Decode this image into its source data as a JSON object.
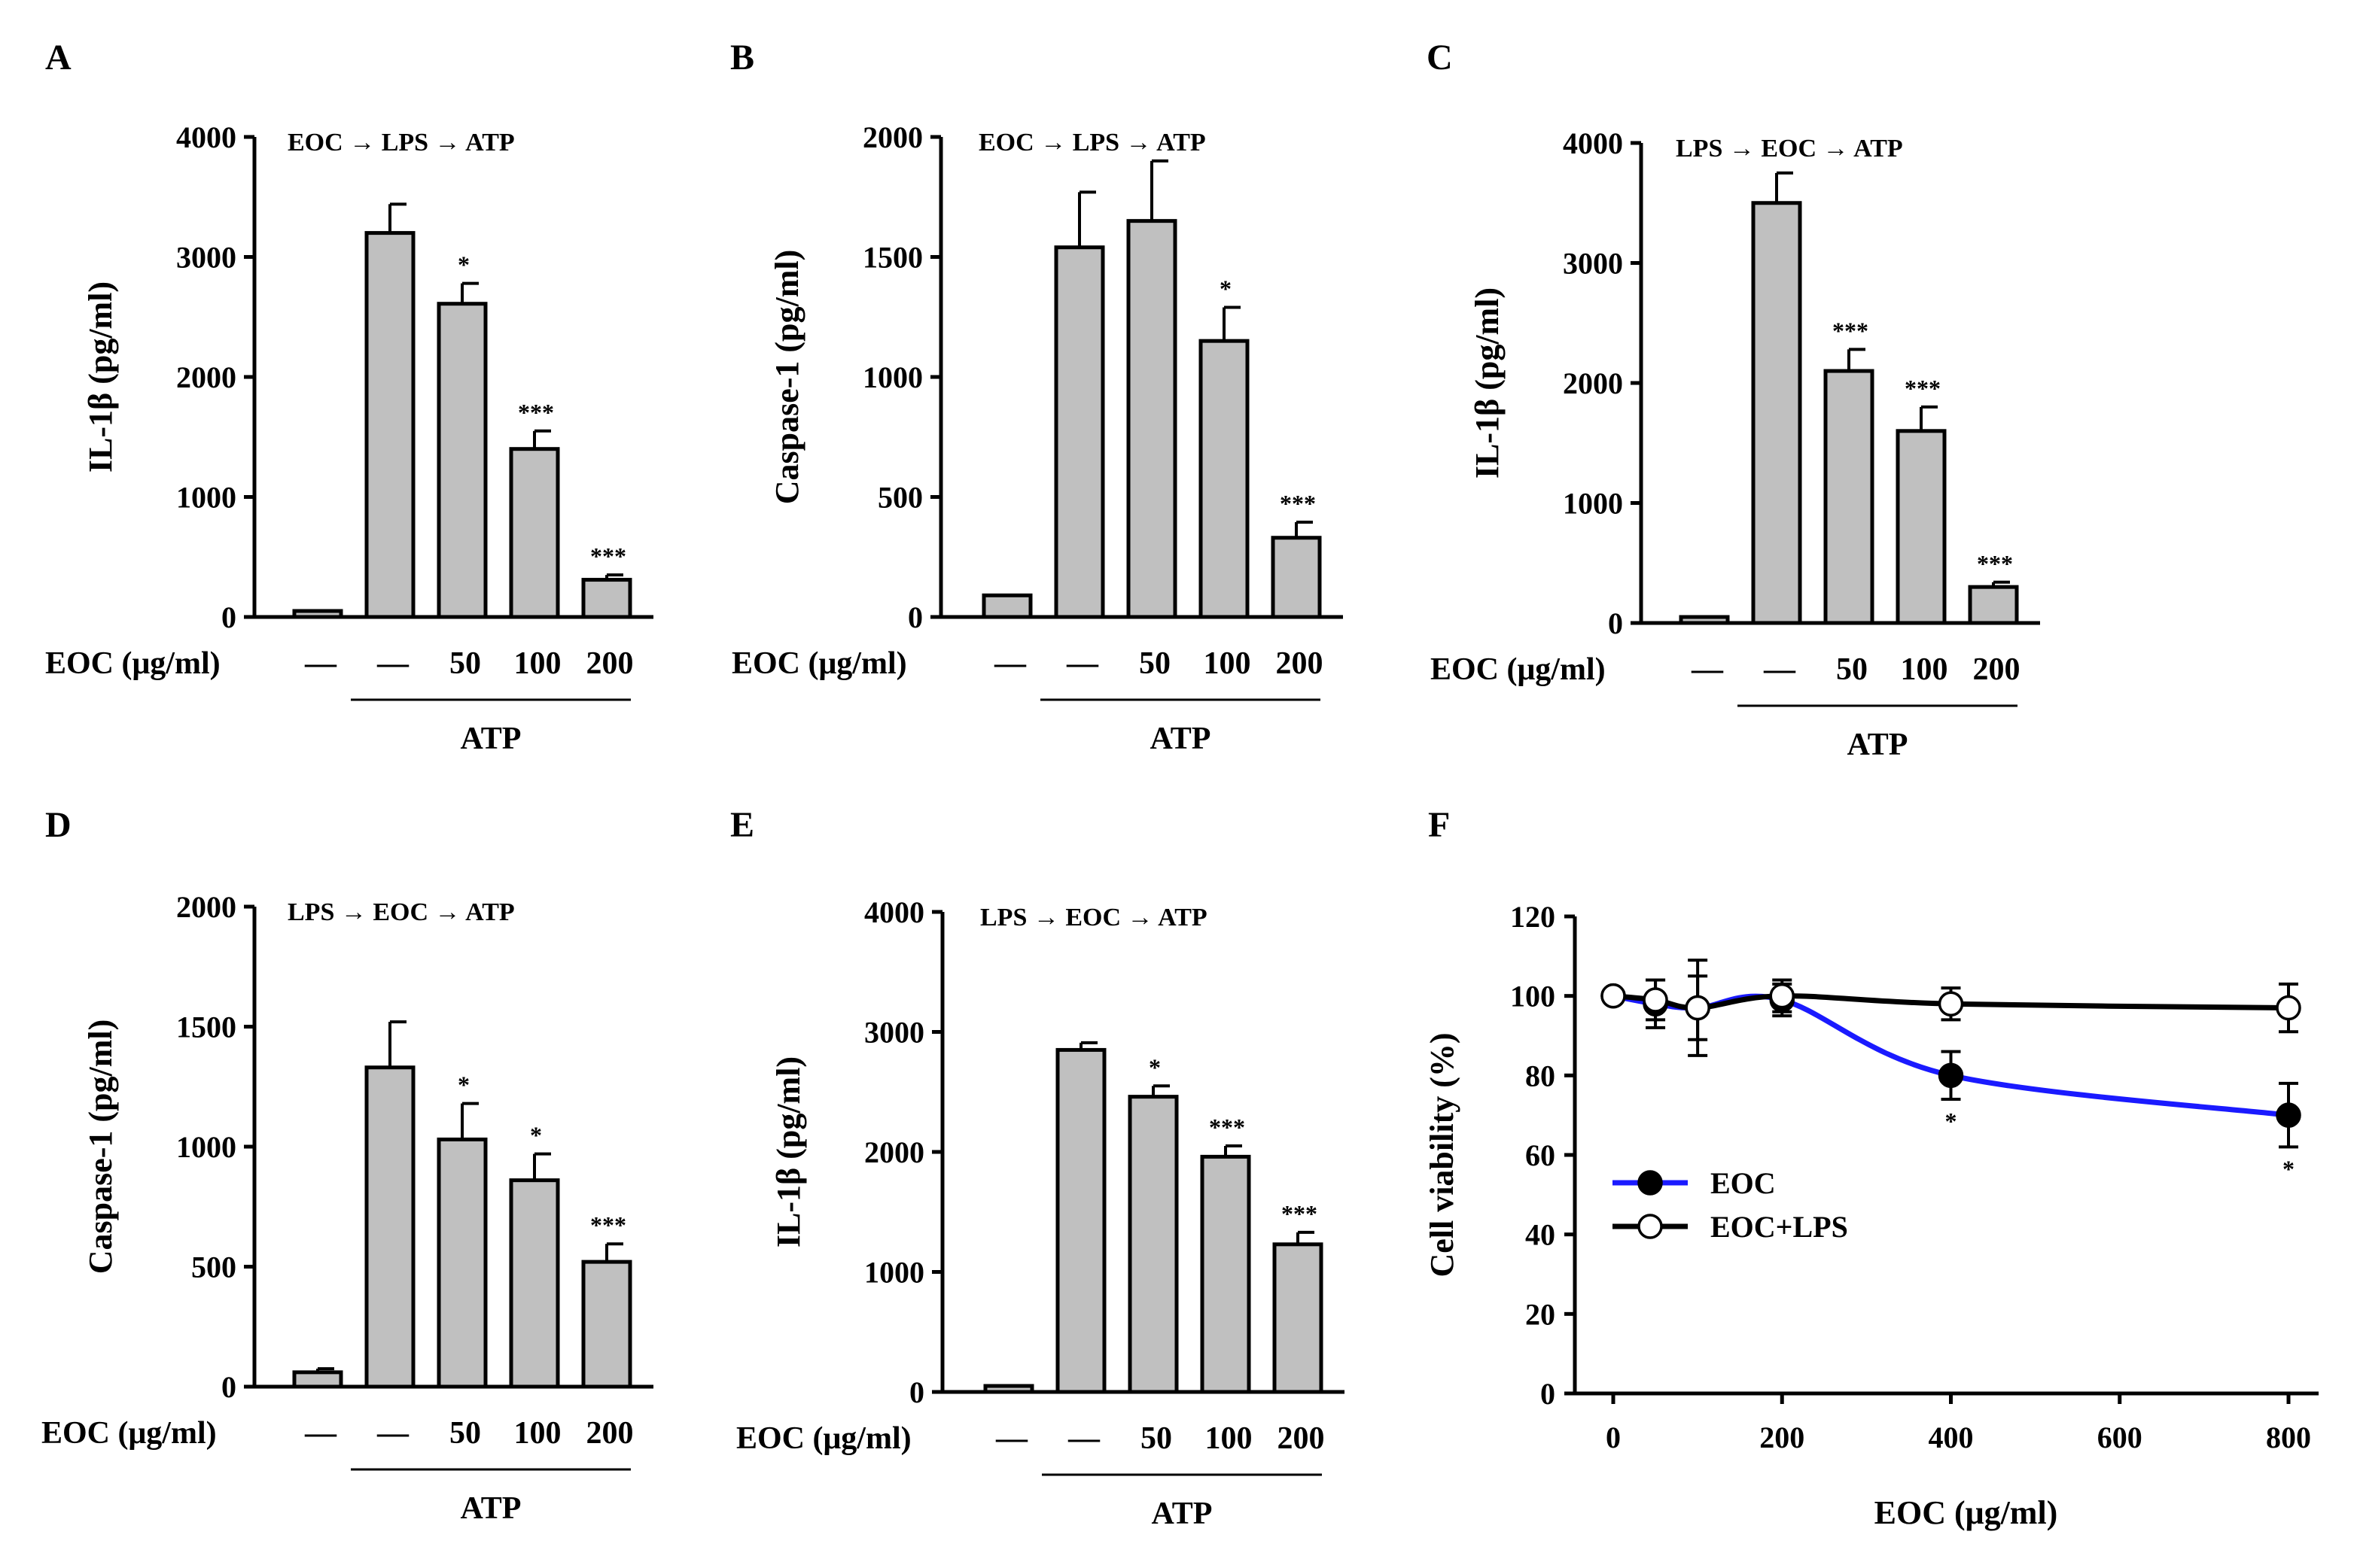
{
  "chart_data": [
    {
      "panel": "A",
      "type": "bar",
      "sequence": [
        "EOC",
        "LPS",
        "ATP"
      ],
      "ylabel": "IL-1β (pg/ml)",
      "ylim": [
        0,
        4000
      ],
      "yticks": [
        "0",
        "1000",
        "2000",
        "3000",
        "4000"
      ],
      "treatment_label": "EOC (μg/ml)",
      "categories": [
        "—",
        "—",
        "50",
        "100",
        "200"
      ],
      "values": [
        50,
        3200,
        2610,
        1400,
        310
      ],
      "errors": [
        0,
        240,
        170,
        150,
        40
      ],
      "significance": [
        "",
        "",
        "*",
        "***",
        "***"
      ],
      "group_label": "ATP"
    },
    {
      "panel": "B",
      "type": "bar",
      "sequence": [
        "EOC",
        "LPS",
        "ATP"
      ],
      "ylabel": "Caspase-1 (pg/ml)",
      "ylim": [
        0,
        2000
      ],
      "yticks": [
        "0",
        "500",
        "1000",
        "1500",
        "2000"
      ],
      "treatment_label": "EOC (μg/ml)",
      "categories": [
        "—",
        "—",
        "50",
        "100",
        "200"
      ],
      "values": [
        90,
        1540,
        1650,
        1150,
        330
      ],
      "errors": [
        0,
        230,
        250,
        140,
        65
      ],
      "significance": [
        "",
        "",
        "",
        "*",
        "***"
      ],
      "group_label": "ATP"
    },
    {
      "panel": "C",
      "type": "bar",
      "sequence": [
        "LPS",
        "EOC",
        "ATP"
      ],
      "ylabel": "IL-1β (pg/ml)",
      "ylim": [
        0,
        4000
      ],
      "yticks": [
        "0",
        "1000",
        "2000",
        "3000",
        "4000"
      ],
      "treatment_label": "EOC (μg/ml)",
      "categories": [
        "—",
        "—",
        "50",
        "100",
        "200"
      ],
      "values": [
        50,
        3500,
        2100,
        1600,
        300
      ],
      "errors": [
        0,
        250,
        180,
        200,
        40
      ],
      "significance": [
        "",
        "",
        "***",
        "***",
        "***"
      ],
      "group_label": "ATP"
    },
    {
      "panel": "D",
      "type": "bar",
      "sequence": [
        "LPS",
        "EOC",
        "ATP"
      ],
      "ylabel": "Caspase-1 (pg/ml)",
      "ylim": [
        0,
        2000
      ],
      "yticks": [
        "0",
        "500",
        "1000",
        "1500",
        "2000"
      ],
      "treatment_label": "EOC (μg/ml)",
      "categories": [
        "—",
        "—",
        "50",
        "100",
        "200"
      ],
      "values": [
        60,
        1330,
        1030,
        860,
        520
      ],
      "errors": [
        15,
        190,
        150,
        110,
        75
      ],
      "significance": [
        "",
        "",
        "*",
        "*",
        "***"
      ],
      "group_label": "ATP"
    },
    {
      "panel": "E",
      "type": "bar",
      "sequence": [
        "LPS",
        "EOC",
        "ATP"
      ],
      "ylabel": "IL-1β (pg/ml)",
      "ylim": [
        0,
        4000
      ],
      "yticks": [
        "0",
        "1000",
        "2000",
        "3000",
        "4000"
      ],
      "treatment_label": "EOC (μg/ml)",
      "categories": [
        "—",
        "—",
        "50",
        "100",
        "200"
      ],
      "values": [
        50,
        2850,
        2460,
        1960,
        1230
      ],
      "errors": [
        0,
        60,
        90,
        90,
        100
      ],
      "significance": [
        "",
        "",
        "*",
        "***",
        "***"
      ],
      "group_label": "ATP"
    },
    {
      "panel": "F",
      "type": "line",
      "xlabel": "EOC (μg/ml)",
      "ylabel": "Cell viability (%)",
      "xlim": [
        0,
        800
      ],
      "ylim": [
        0,
        120
      ],
      "xticks": [
        "0",
        "200",
        "400",
        "600",
        "800"
      ],
      "yticks": [
        "0",
        "20",
        "40",
        "60",
        "80",
        "100",
        "120"
      ],
      "x": [
        0,
        50,
        100,
        200,
        400,
        800
      ],
      "series": [
        {
          "name": "EOC",
          "color": "#1a1aff",
          "marker": "filled",
          "values": [
            100,
            98,
            97,
            99,
            80,
            70
          ],
          "errors": [
            0,
            6,
            12,
            4,
            6,
            8
          ],
          "significance": [
            "",
            "",
            "",
            "",
            "*",
            "*"
          ]
        },
        {
          "name": "EOC+LPS",
          "color": "#000000",
          "marker": "open",
          "values": [
            100,
            99,
            97,
            100,
            98,
            97
          ],
          "errors": [
            0,
            5,
            8,
            4,
            4,
            6
          ],
          "significance": [
            "",
            "",
            "",
            "",
            "",
            ""
          ]
        }
      ]
    }
  ]
}
